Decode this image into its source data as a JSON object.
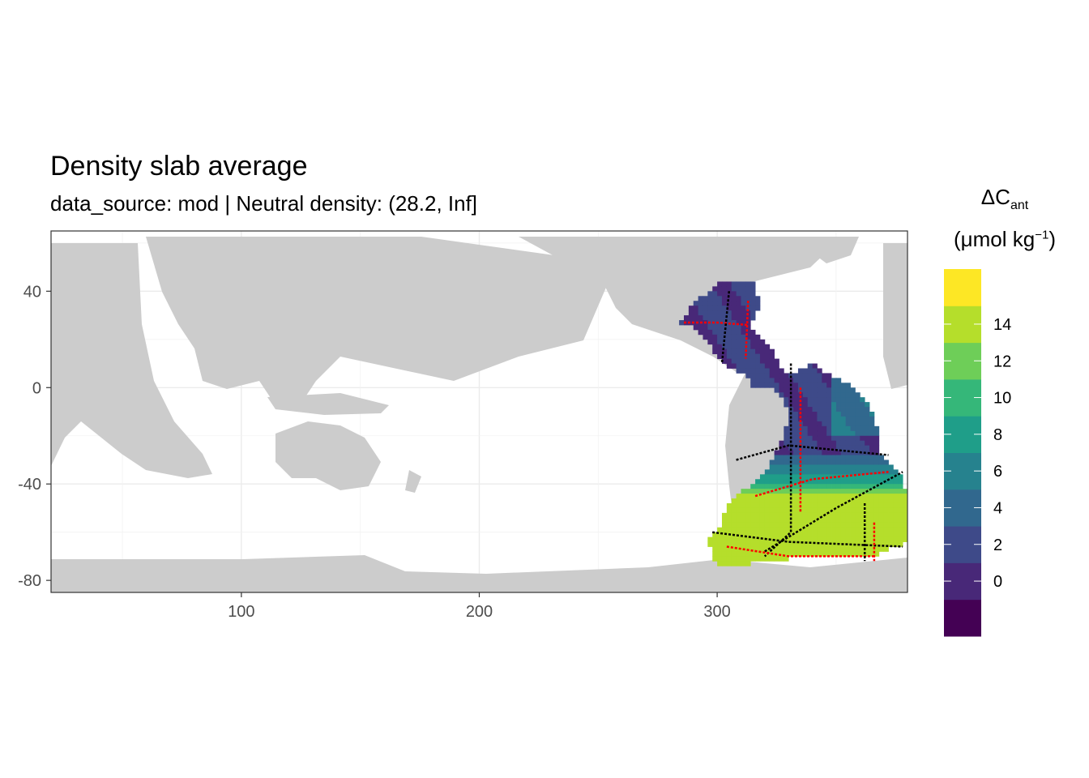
{
  "title": "Density slab average",
  "subtitle": "data_source: mod | Neutral density: (28.2, Inf]",
  "legend": {
    "title_symbol": "ΔC",
    "title_subscript": "ant",
    "unit_prefix": "(μmol kg",
    "unit_superscript": "−1",
    "unit_suffix": ")",
    "breaks": [
      0,
      2,
      4,
      6,
      8,
      10,
      12,
      14
    ],
    "colors": [
      "#440154",
      "#482878",
      "#3e4a89",
      "#31688e",
      "#26828e",
      "#1f9e89",
      "#35b779",
      "#6ece58",
      "#b5de2b",
      "#fde725"
    ]
  },
  "chart_data": {
    "type": "heatmap",
    "xlim": [
      20,
      380
    ],
    "ylim": [
      -85,
      65
    ],
    "x_ticks": [
      100,
      200,
      300
    ],
    "y_ticks": [
      40,
      0,
      -40,
      -80
    ],
    "grid": true,
    "land_color": "#cccccc",
    "section_line_colors": [
      "#000000",
      "#ff0000"
    ]
  }
}
